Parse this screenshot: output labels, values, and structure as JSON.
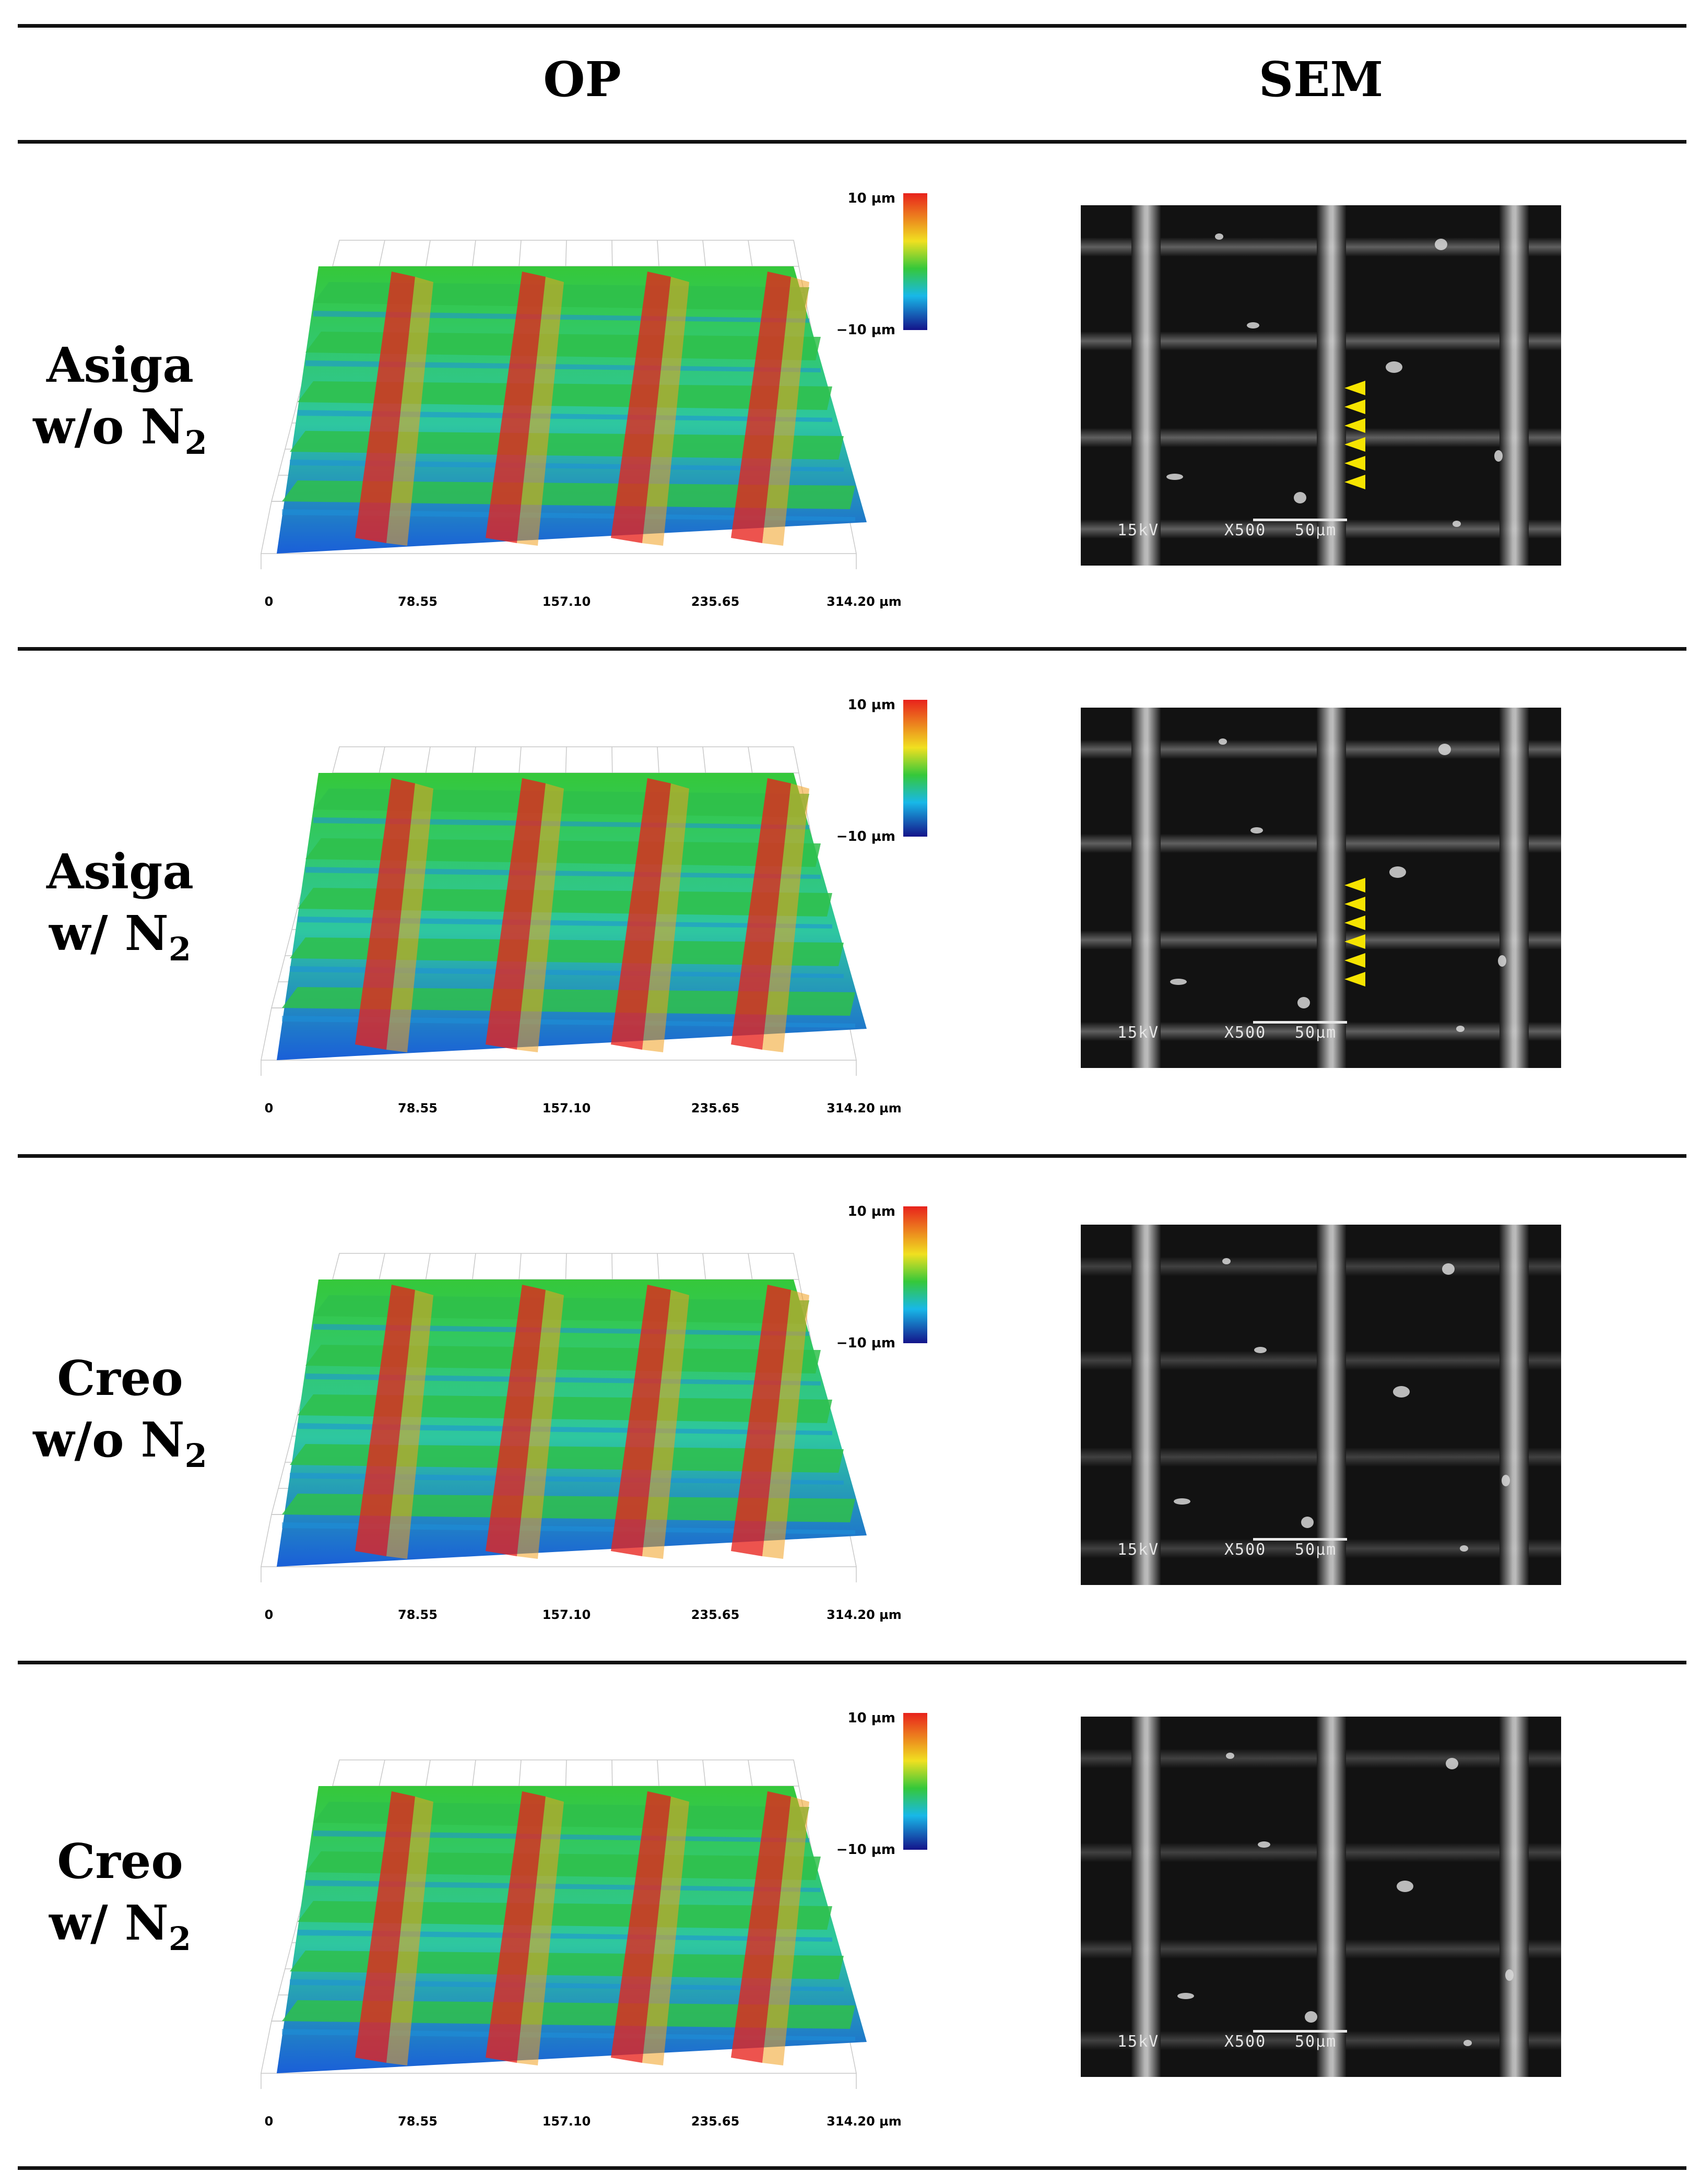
{
  "header": {
    "op": "OP",
    "sem": "SEM"
  },
  "colorbar": {
    "max": "10 µm",
    "min": "−10 µm"
  },
  "x_ticks": [
    "0",
    "78.55",
    "157.10",
    "235.65",
    "314.20 µm"
  ],
  "sem_info": {
    "voltage": "15kV",
    "magnification": "X500",
    "scale": "50µm"
  },
  "rows": [
    {
      "line1": "Asiga",
      "prefix": "w/o N",
      "sub": "2",
      "arrows": 6
    },
    {
      "line1": "Asiga",
      "prefix": "w/ N",
      "sub": "2",
      "arrows": 6
    },
    {
      "line1": "Creo",
      "prefix": "w/o N",
      "sub": "2",
      "arrows": 0
    },
    {
      "line1": "Creo",
      "prefix": "w/ N",
      "sub": "2",
      "arrows": 0
    }
  ],
  "colors": {
    "red": "#e8221c",
    "green": "#35c83a",
    "blue": "#1a5fd8",
    "navy": "#14138a",
    "arrow": "#f6e400"
  }
}
